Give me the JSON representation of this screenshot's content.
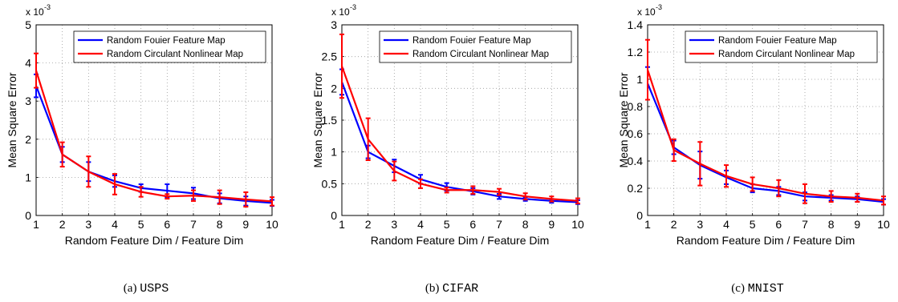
{
  "legend_labels": [
    "Random Fouier Feature Map",
    "Random Circulant Nonlinear Map"
  ],
  "series_colors": [
    "#0000ff",
    "#ff0000"
  ],
  "captions": [
    {
      "prefix": "(a)",
      "name": "USPS"
    },
    {
      "prefix": "(b)",
      "name": "CIFAR"
    },
    {
      "prefix": "(c)",
      "name": "MNIST"
    }
  ],
  "chart_data": [
    {
      "type": "line",
      "xlabel": "Random Feature Dim / Feature Dim",
      "ylabel": "Mean Square Error",
      "scale_label": "x 10",
      "scale_exp": "-3",
      "x": [
        1,
        2,
        3,
        4,
        5,
        6,
        7,
        8,
        9,
        10
      ],
      "xlim": [
        1,
        10
      ],
      "ylim": [
        0,
        5
      ],
      "yticks": [
        0,
        1,
        2,
        3,
        4,
        5
      ],
      "grid": true,
      "legend_position": "top-right",
      "series": [
        {
          "name": "Random Fouier Feature Map",
          "values": [
            3.4,
            1.6,
            1.15,
            0.9,
            0.72,
            0.65,
            0.58,
            0.45,
            0.38,
            0.33
          ],
          "errors": [
            0.3,
            0.2,
            0.25,
            0.15,
            0.1,
            0.17,
            0.15,
            0.13,
            0.12,
            0.08
          ]
        },
        {
          "name": "Random Circulant Nonlinear Map",
          "values": [
            3.8,
            1.6,
            1.15,
            0.82,
            0.62,
            0.5,
            0.52,
            0.48,
            0.42,
            0.37
          ],
          "errors": [
            0.45,
            0.32,
            0.4,
            0.27,
            0.13,
            0.06,
            0.14,
            0.18,
            0.19,
            0.11
          ]
        }
      ]
    },
    {
      "type": "line",
      "xlabel": "Random Feature Dim / Feature Dim",
      "ylabel": "Mean Square Error",
      "scale_label": "x 10",
      "scale_exp": "-3",
      "x": [
        1,
        2,
        3,
        4,
        5,
        6,
        7,
        8,
        9,
        10
      ],
      "xlim": [
        1,
        10
      ],
      "ylim": [
        0,
        3
      ],
      "yticks": [
        0,
        0.5,
        1,
        1.5,
        2,
        2.5,
        3
      ],
      "grid": true,
      "legend_position": "top-right",
      "series": [
        {
          "name": "Random Fouier Feature Map",
          "values": [
            2.1,
            1.0,
            0.78,
            0.57,
            0.45,
            0.38,
            0.3,
            0.26,
            0.23,
            0.21
          ],
          "errors": [
            0.2,
            0.1,
            0.1,
            0.07,
            0.06,
            0.05,
            0.04,
            0.03,
            0.03,
            0.03
          ]
        },
        {
          "name": "Random Circulant Nonlinear Map",
          "values": [
            2.35,
            1.2,
            0.7,
            0.5,
            0.4,
            0.4,
            0.37,
            0.3,
            0.26,
            0.23
          ],
          "errors": [
            0.5,
            0.33,
            0.15,
            0.07,
            0.04,
            0.06,
            0.05,
            0.05,
            0.04,
            0.04
          ]
        }
      ]
    },
    {
      "type": "line",
      "xlabel": "Random Feature Dim / Feature Dim",
      "ylabel": "Mean Square Error",
      "scale_label": "x 10",
      "scale_exp": "-3",
      "x": [
        1,
        2,
        3,
        4,
        5,
        6,
        7,
        8,
        9,
        10
      ],
      "xlim": [
        1,
        10
      ],
      "ylim": [
        0,
        1.4
      ],
      "yticks": [
        0,
        0.2,
        0.4,
        0.6,
        0.8,
        1,
        1.2,
        1.4
      ],
      "grid": true,
      "legend_position": "top-right",
      "series": [
        {
          "name": "Random Fouier Feature Map",
          "values": [
            0.97,
            0.5,
            0.37,
            0.28,
            0.2,
            0.18,
            0.14,
            0.13,
            0.12,
            0.1
          ],
          "errors": [
            0.12,
            0.05,
            0.1,
            0.05,
            0.03,
            0.03,
            0.03,
            0.02,
            0.02,
            0.02
          ]
        },
        {
          "name": "Random Circulant Nonlinear Map",
          "values": [
            1.07,
            0.48,
            0.38,
            0.29,
            0.23,
            0.2,
            0.16,
            0.14,
            0.13,
            0.11
          ],
          "errors": [
            0.22,
            0.08,
            0.16,
            0.08,
            0.05,
            0.06,
            0.07,
            0.04,
            0.03,
            0.03
          ]
        }
      ]
    }
  ]
}
